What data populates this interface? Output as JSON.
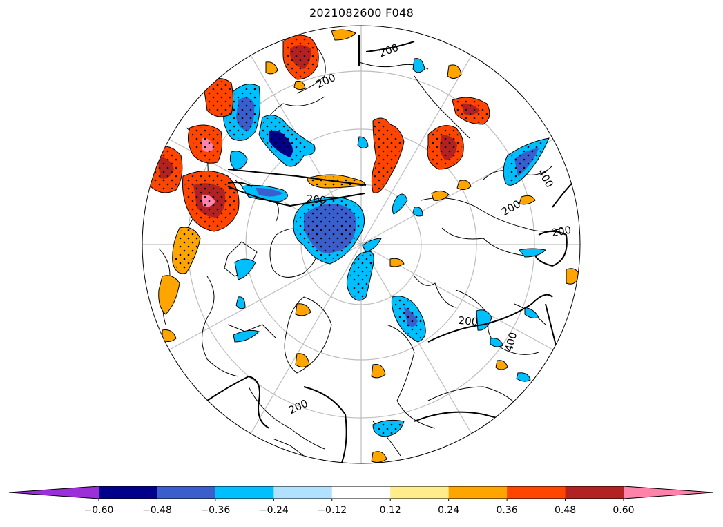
{
  "title": "2021082600 F048",
  "contour_labels": [
    {
      "id": "c1",
      "text": "200",
      "rot": -20
    },
    {
      "id": "c2",
      "text": "200",
      "rot": -25
    },
    {
      "id": "c3",
      "text": "200",
      "rot": 5
    },
    {
      "id": "c4",
      "text": "200",
      "rot": -30
    },
    {
      "id": "c5",
      "text": "200",
      "rot": -10
    },
    {
      "id": "c6",
      "text": "400",
      "rot": 60
    },
    {
      "id": "c7",
      "text": "200",
      "rot": 5
    },
    {
      "id": "c8",
      "text": "400",
      "rot": -75
    },
    {
      "id": "c9",
      "text": "200",
      "rot": -25
    }
  ],
  "colorbar": {
    "colors": [
      "#9b30d9",
      "#00008b",
      "#3a5fcd",
      "#00bfff",
      "#b0e2ff",
      "#ffffff",
      "#ffec8b",
      "#ffa500",
      "#ff4500",
      "#b22222",
      "#ff82ab"
    ],
    "ticks": [
      "−0.60",
      "−0.48",
      "−0.36",
      "−0.24",
      "−0.12",
      "0.12",
      "0.24",
      "0.36",
      "0.48",
      "0.60"
    ]
  }
}
